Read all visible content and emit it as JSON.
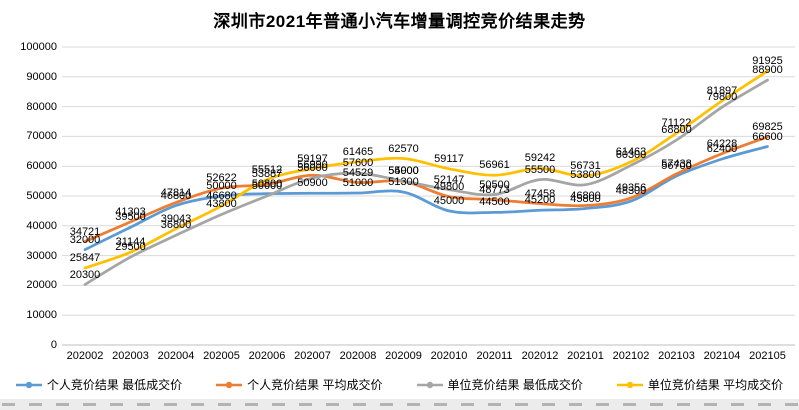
{
  "title": "深圳市2021年普通小汽车增量调控竞价结果走势",
  "chart_data": {
    "type": "line",
    "title": "深圳市2021年普通小汽车增量调控竞价结果走势",
    "x": [
      "202002",
      "202003",
      "202004",
      "202005",
      "202006",
      "202007",
      "202008",
      "202009",
      "202010",
      "202011",
      "202012",
      "202101",
      "202102",
      "202103",
      "202104",
      "202105"
    ],
    "series": [
      {
        "name": "个人竞价结果 最低成交价",
        "color": "#5B9BD5",
        "values": [
          32000,
          39500,
          46800,
          50000,
          50800,
          50900,
          51000,
          51300,
          45000,
          44500,
          45200,
          45800,
          48300,
          56700,
          62400,
          66600
        ]
      },
      {
        "name": "个人竞价结果 平均成交价",
        "color": "#ED7D31",
        "values": [
          34721,
          41303,
          47814,
          52622,
          53887,
          56990,
          54529,
          54900,
          49800,
          48773,
          47458,
          46800,
          49356,
          57438,
          64228,
          69825
        ]
      },
      {
        "name": "单位竞价结果 最低成交价",
        "color": "#A5A5A5",
        "values": [
          20300,
          29500,
          36800,
          43800,
          50000,
          56000,
          57600,
          55000,
          52147,
          50500,
          55500,
          53800,
          60300,
          68800,
          79800,
          88900
        ]
      },
      {
        "name": "单位竞价结果 平均成交价",
        "color": "#FFC000",
        "values": [
          25847,
          31144,
          39043,
          46680,
          55512,
          59197,
          61465,
          62570,
          59117,
          56961,
          59242,
          56731,
          61463,
          71122,
          81897,
          91925
        ]
      }
    ],
    "ylim": [
      0,
      100000
    ],
    "yticks": [
      0,
      10000,
      20000,
      30000,
      40000,
      50000,
      60000,
      70000,
      80000,
      90000,
      100000
    ],
    "grid": true,
    "data_labels": true,
    "legend_position": "bottom",
    "grid_color": "#D9D9D9",
    "axis_color": "#BFBFBF"
  }
}
